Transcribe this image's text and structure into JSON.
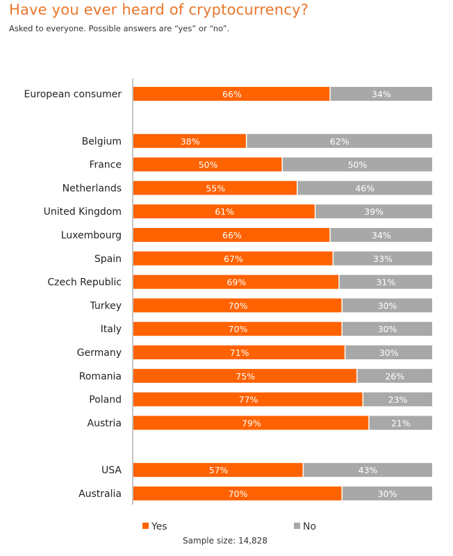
{
  "chart_data": {
    "type": "bar",
    "orientation": "horizontal",
    "stacked": true,
    "title": "Have you ever heard of cryptocurrency?",
    "subtitle": "Asked to everyone. Possible answers are “yes” or “no”.",
    "xlabel": "",
    "ylabel": "",
    "xlim": [
      0,
      100
    ],
    "categories": [
      "European consumer",
      "Belgium",
      "France",
      "Netherlands",
      "United Kingdom",
      "Luxembourg",
      "Spain",
      "Czech Republic",
      "Turkey",
      "Italy",
      "Germany",
      "Romania",
      "Poland",
      "Austria",
      "USA",
      "Australia"
    ],
    "groups": [
      0,
      1,
      1,
      1,
      1,
      1,
      1,
      1,
      1,
      1,
      1,
      1,
      1,
      1,
      2,
      2
    ],
    "series": [
      {
        "name": "Yes",
        "color": "#ff6200",
        "values": [
          66,
          38,
          50,
          55,
          61,
          66,
          67,
          69,
          70,
          70,
          71,
          75,
          77,
          79,
          57,
          70
        ],
        "labels": [
          "66%",
          "38%",
          "50%",
          "55%",
          "61%",
          "66%",
          "67%",
          "69%",
          "70%",
          "70%",
          "71%",
          "75%",
          "77%",
          "79%",
          "57%",
          "70%"
        ]
      },
      {
        "name": "No",
        "color": "#a8a8a8",
        "values": [
          34,
          62,
          50,
          46,
          39,
          34,
          33,
          31,
          30,
          30,
          30,
          26,
          23,
          21,
          43,
          30
        ],
        "labels": [
          "34%",
          "62%",
          "50%",
          "46%",
          "39%",
          "34%",
          "33%",
          "31%",
          "30%",
          "30%",
          "30%",
          "26%",
          "23%",
          "21%",
          "43%",
          "30%"
        ]
      }
    ],
    "legend": {
      "position": "bottom",
      "items": [
        "Yes",
        "No"
      ]
    },
    "grid": false,
    "footnote": "Sample size: 14,828"
  }
}
